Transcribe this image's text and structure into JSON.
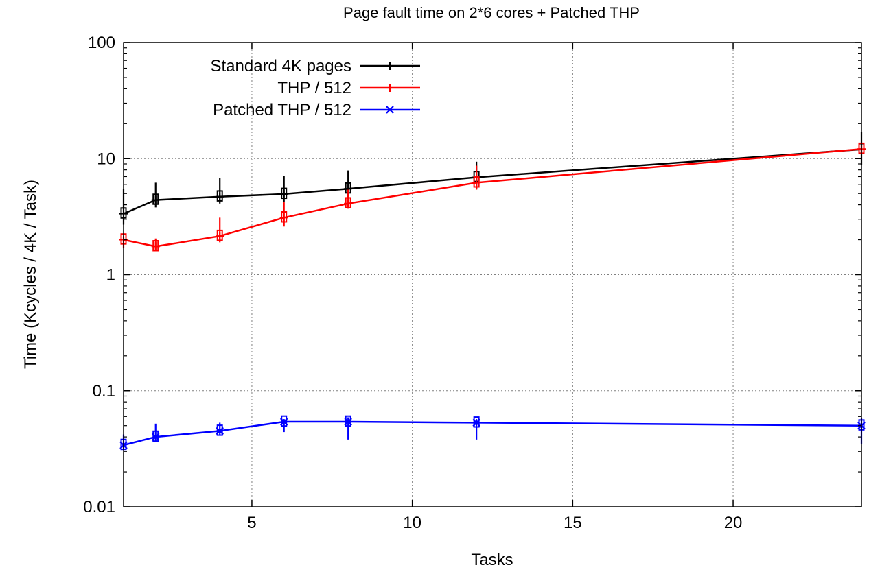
{
  "chart_data": {
    "type": "line",
    "title": "Page fault time on 2*6 cores + Patched THP",
    "xlabel": "Tasks",
    "ylabel": "Time (Kcycles / 4K / Task)",
    "x_scale": "linear",
    "y_scale": "log",
    "xlim": [
      1,
      24
    ],
    "ylim": [
      0.01,
      100
    ],
    "x_ticks": [
      {
        "value": 5,
        "label": "5"
      },
      {
        "value": 10,
        "label": "10"
      },
      {
        "value": 15,
        "label": "15"
      },
      {
        "value": 20,
        "label": "20"
      }
    ],
    "y_ticks": [
      {
        "value": 0.01,
        "label": "0.01"
      },
      {
        "value": 0.1,
        "label": "0.1"
      },
      {
        "value": 1,
        "label": "1"
      },
      {
        "value": 10,
        "label": "10"
      },
      {
        "value": 100,
        "label": "100"
      }
    ],
    "grid": true,
    "legend_position": "top-left",
    "series": [
      {
        "name": "Standard 4K pages",
        "color": "#000000",
        "marker": "plus",
        "points": [
          {
            "x": 1,
            "y": 3.35,
            "err": [
              2.7,
              5.5
            ]
          },
          {
            "x": 2,
            "y": 4.4,
            "err": [
              3.8,
              6.2
            ]
          },
          {
            "x": 4,
            "y": 4.7,
            "err": [
              4.1,
              6.8
            ]
          },
          {
            "x": 6,
            "y": 4.95,
            "err": [
              4.2,
              7.1
            ]
          },
          {
            "x": 8,
            "y": 5.5,
            "err": [
              4.5,
              7.9
            ]
          },
          {
            "x": 12,
            "y": 6.9,
            "err": [
              5.5,
              9.4
            ]
          },
          {
            "x": 24,
            "y": 12.0,
            "err": [
              8.8,
              17.0
            ]
          }
        ]
      },
      {
        "name": "THP / 512",
        "color": "#ff0000",
        "marker": "plus",
        "points": [
          {
            "x": 1,
            "y": 2.0,
            "err": [
              1.7,
              2.1
            ]
          },
          {
            "x": 2,
            "y": 1.75,
            "err": [
              1.6,
              2.05
            ]
          },
          {
            "x": 4,
            "y": 2.15,
            "err": [
              1.9,
              3.1
            ]
          },
          {
            "x": 6,
            "y": 3.1,
            "err": [
              2.6,
              4.2
            ]
          },
          {
            "x": 8,
            "y": 4.1,
            "err": [
              3.7,
              5.4
            ]
          },
          {
            "x": 12,
            "y": 6.2,
            "err": [
              5.4,
              8.7
            ]
          },
          {
            "x": 24,
            "y": 12.1,
            "err": [
              11.0,
              13.0
            ]
          }
        ]
      },
      {
        "name": "Patched THP / 512",
        "color": "#0000ff",
        "marker": "cross",
        "points": [
          {
            "x": 1,
            "y": 0.034,
            "err": [
              0.031,
              0.042
            ]
          },
          {
            "x": 2,
            "y": 0.04,
            "err": [
              0.037,
              0.052
            ]
          },
          {
            "x": 4,
            "y": 0.045,
            "err": [
              0.041,
              0.053
            ]
          },
          {
            "x": 6,
            "y": 0.054,
            "err": [
              0.044,
              0.057
            ]
          },
          {
            "x": 8,
            "y": 0.054,
            "err": [
              0.038,
              0.059
            ]
          },
          {
            "x": 12,
            "y": 0.053,
            "err": [
              0.038,
              0.057
            ]
          },
          {
            "x": 24,
            "y": 0.05,
            "err": [
              0.035,
              0.058
            ]
          }
        ]
      }
    ]
  }
}
